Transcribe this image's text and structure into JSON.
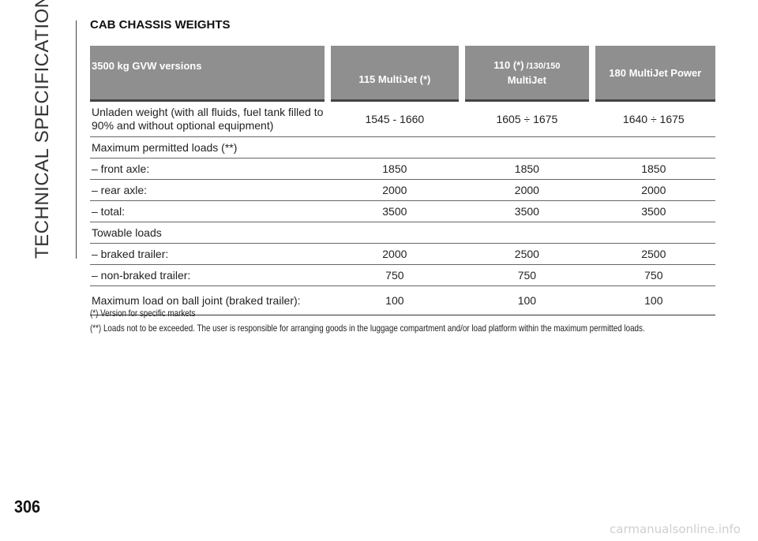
{
  "side_title": "TECHNICAL SPECIFICATIONS",
  "section_title": "CAB CHASSIS WEIGHTS",
  "page_number": "306",
  "table": {
    "header": {
      "c0": "3500 kg GVW versions",
      "c1": "115 MultiJet (*)",
      "c2_main": "110 (*)",
      "c2_small": " /130/150",
      "c2_line2": "MultiJet",
      "c3": "180 MultiJet Power"
    },
    "rows": [
      {
        "label": "Unladen weight (with all fluids, fuel tank filled to 90% and without optional equipment)",
        "v1": "1545 - 1660",
        "v2": "1605 ÷ 1675",
        "v3": "1640 ÷ 1675"
      },
      {
        "label": "Maximum permitted loads (**)",
        "v1": "",
        "v2": "",
        "v3": ""
      },
      {
        "label": "– front axle:",
        "v1": "1850",
        "v2": "1850",
        "v3": "1850"
      },
      {
        "label": "– rear axle:",
        "v1": "2000",
        "v2": "2000",
        "v3": "2000"
      },
      {
        "label": "– total:",
        "v1": "3500",
        "v2": "3500",
        "v3": "3500"
      },
      {
        "label": "Towable loads",
        "v1": "",
        "v2": "",
        "v3": ""
      },
      {
        "label": "– braked trailer:",
        "v1": "2000",
        "v2": "2500",
        "v3": "2500"
      },
      {
        "label": "– non-braked trailer:",
        "v1": "750",
        "v2": "750",
        "v3": "750"
      },
      {
        "label": "Maximum load on ball joint (braked trailer):",
        "v1": "100",
        "v2": "100",
        "v3": "100"
      }
    ]
  },
  "notes": [
    "(*) Version for specific markets",
    "(**) Loads not to be exceeded. The user is responsible for arranging goods in the luggage compartment and/or load platform within the maximum permitted loads."
  ],
  "watermark": "carmanualsonline.info"
}
